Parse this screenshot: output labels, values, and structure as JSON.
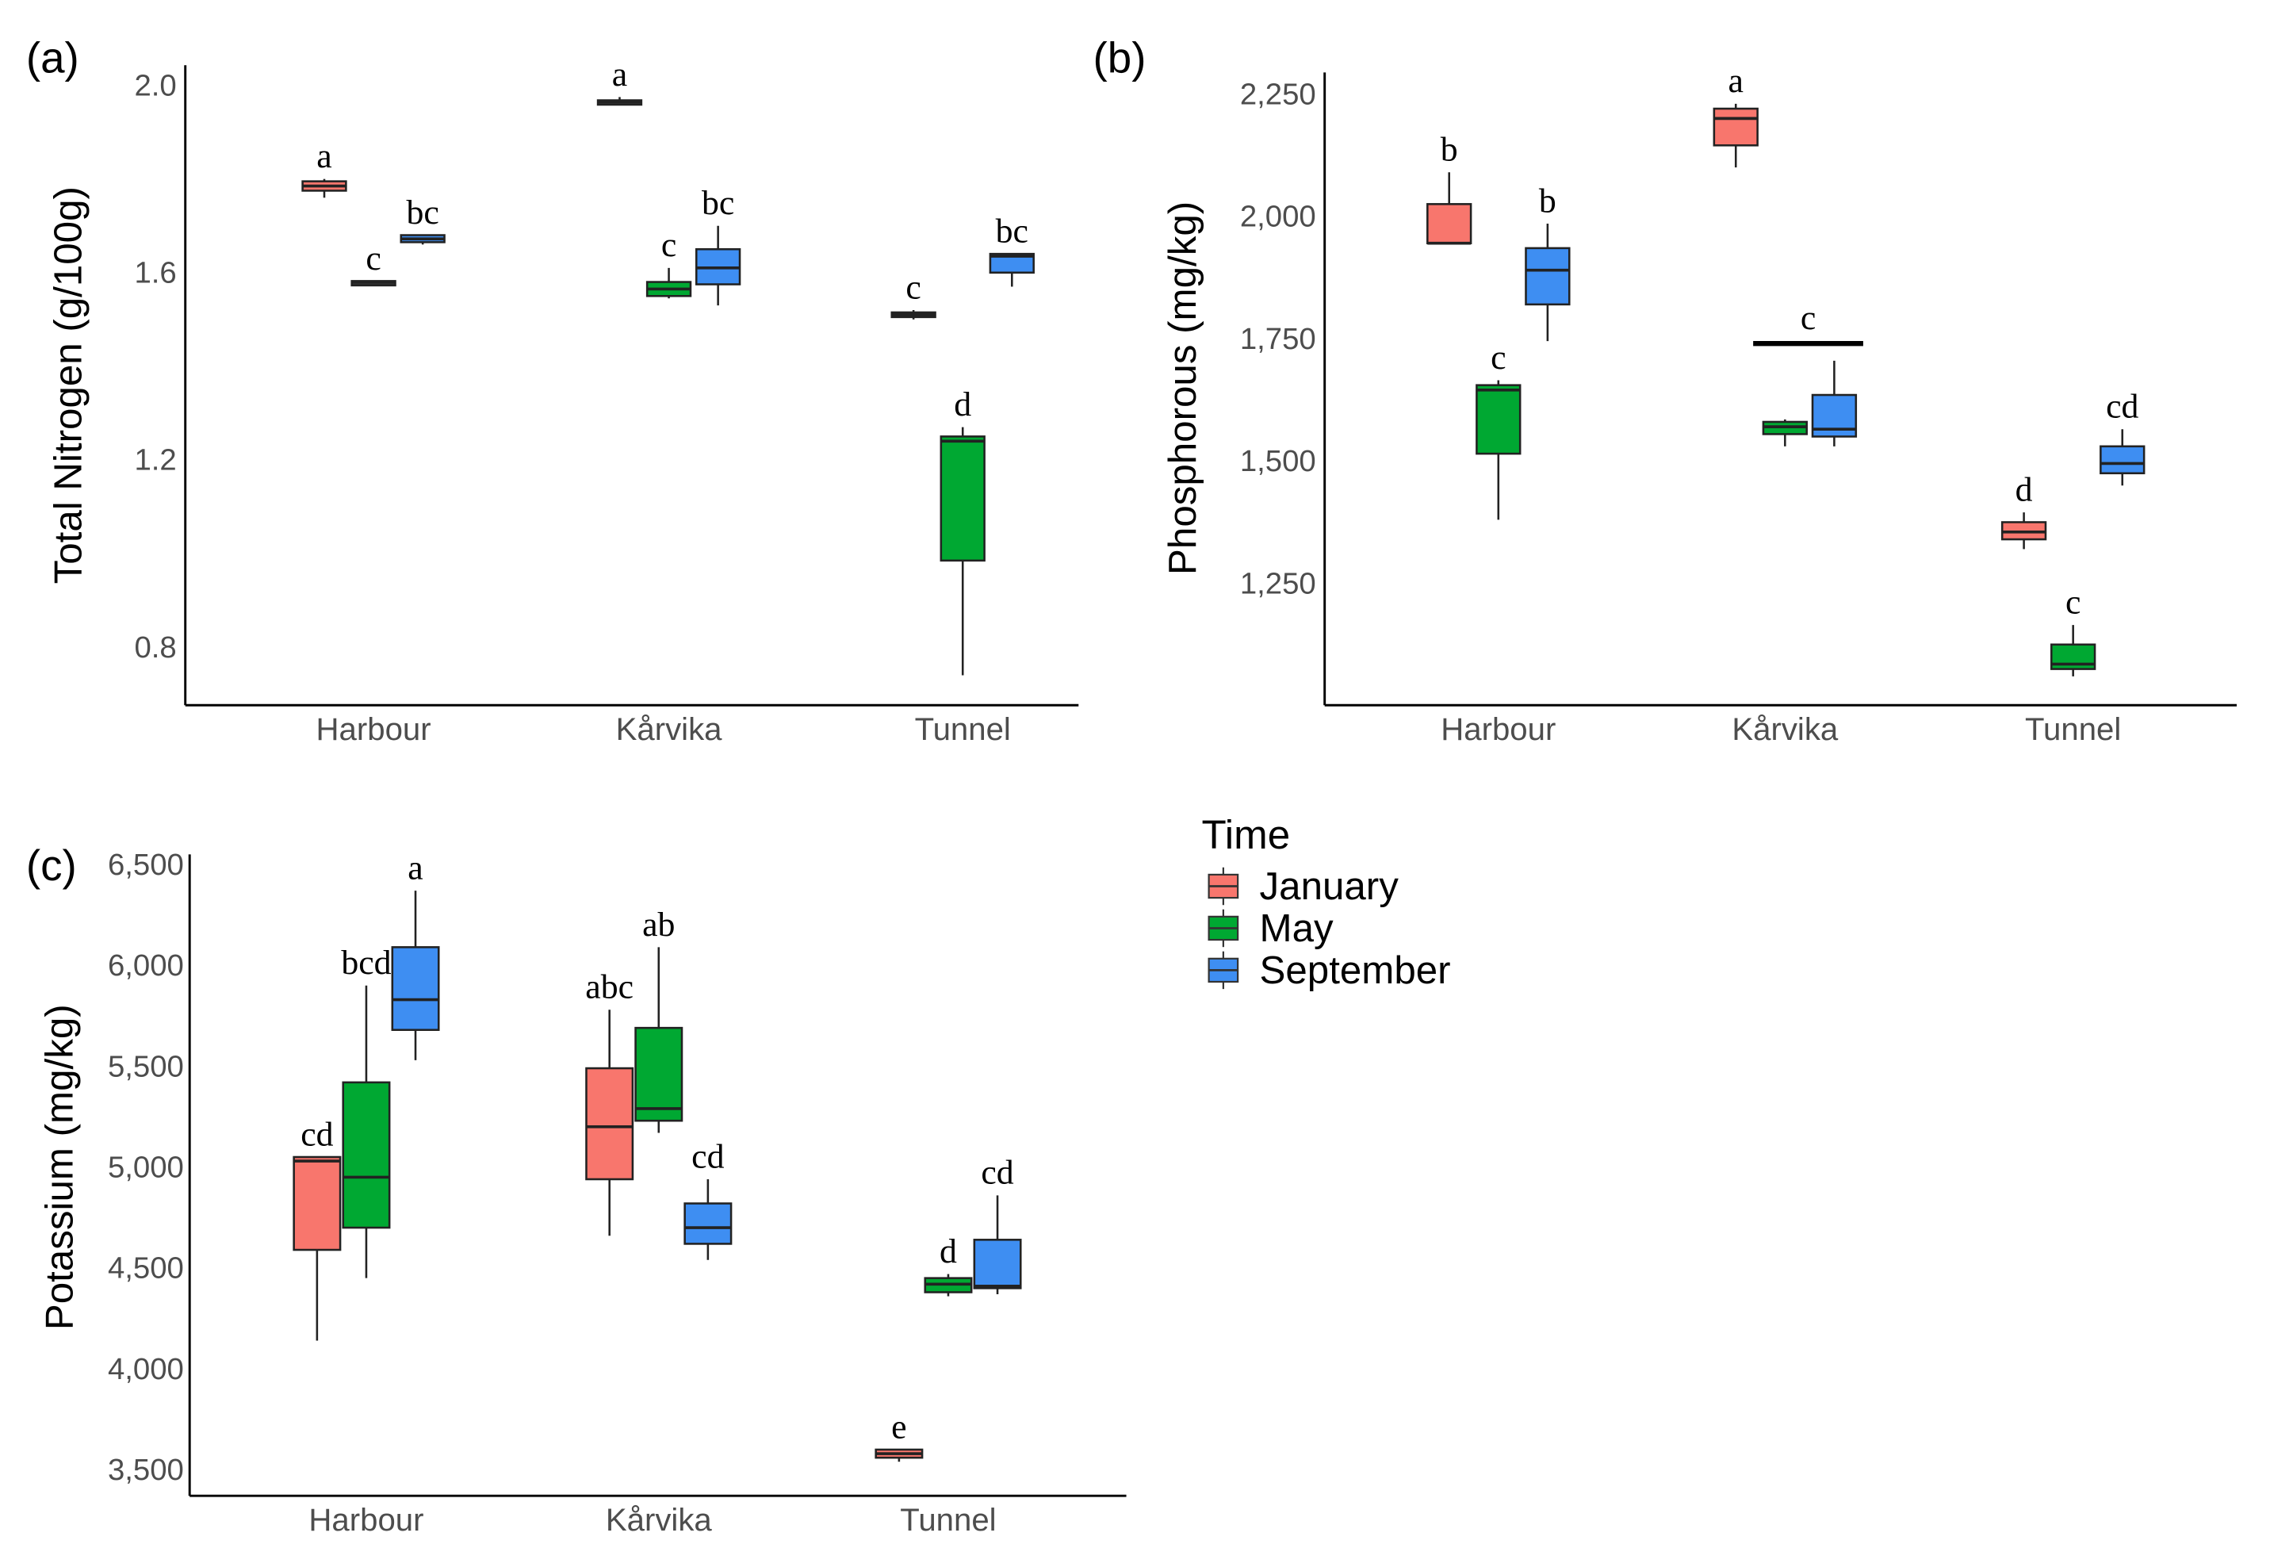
{
  "colors": {
    "January": "#F8766D",
    "May": "#00A832",
    "September": "#3E8EF2",
    "dark": "#333333"
  },
  "legend": {
    "title": "Time",
    "items": [
      "January",
      "May",
      "September"
    ]
  },
  "chart_data": [
    {
      "panel": "(a)",
      "type": "box",
      "ylabel": "Total Nitrogen (g/100g)",
      "categories": [
        "Harbour",
        "Kårvika",
        "Tunnel"
      ],
      "yticks": [
        {
          "v": 2.0,
          "t": "2.0"
        },
        {
          "v": 1.6,
          "t": "1.6"
        },
        {
          "v": 1.2,
          "t": "1.2"
        },
        {
          "v": 0.8,
          "t": "0.8"
        }
      ],
      "ylim": [
        0.676,
        2.043
      ],
      "boxes": [
        {
          "cat": 0,
          "series": "January",
          "q1": 1.775,
          "med": 1.785,
          "q3": 1.795,
          "lo": 1.76,
          "hi": 1.8,
          "letter": "a"
        },
        {
          "cat": 0,
          "series": "May",
          "q1": 1.578,
          "med": 1.58,
          "q3": 1.582,
          "lo": 1.575,
          "hi": 1.582,
          "letter": "c",
          "dark": true
        },
        {
          "cat": 0,
          "series": "September",
          "q1": 1.665,
          "med": 1.672,
          "q3": 1.68,
          "lo": 1.66,
          "hi": 1.68,
          "letter": "bc"
        },
        {
          "cat": 1,
          "series": "January",
          "q1": 1.962,
          "med": 1.965,
          "q3": 1.968,
          "lo": 1.962,
          "hi": 1.975,
          "letter": "a",
          "dark": true
        },
        {
          "cat": 1,
          "series": "May",
          "q1": 1.55,
          "med": 1.565,
          "q3": 1.58,
          "lo": 1.545,
          "hi": 1.61,
          "letter": "c"
        },
        {
          "cat": 1,
          "series": "September",
          "q1": 1.575,
          "med": 1.61,
          "q3": 1.65,
          "lo": 1.53,
          "hi": 1.7,
          "letter": "bc"
        },
        {
          "cat": 2,
          "series": "January",
          "q1": 1.505,
          "med": 1.51,
          "q3": 1.515,
          "lo": 1.5,
          "hi": 1.52,
          "letter": "c",
          "dark": true
        },
        {
          "cat": 2,
          "series": "May",
          "q1": 0.985,
          "med": 1.24,
          "q3": 1.25,
          "lo": 0.74,
          "hi": 1.27,
          "letter": "d"
        },
        {
          "cat": 2,
          "series": "September",
          "q1": 1.6,
          "med": 1.635,
          "q3": 1.64,
          "lo": 1.57,
          "hi": 1.64,
          "letter": "bc"
        }
      ]
    },
    {
      "panel": "(b)",
      "type": "box",
      "ylabel": "Phosphorous (mg/kg)",
      "categories": [
        "Harbour",
        "Kårvika",
        "Tunnel"
      ],
      "yticks": [
        {
          "v": 2250,
          "t": "2,250"
        },
        {
          "v": 2000,
          "t": "2,000"
        },
        {
          "v": 1750,
          "t": "1,750"
        },
        {
          "v": 1500,
          "t": "1,500"
        },
        {
          "v": 1250,
          "t": "1,250"
        }
      ],
      "ylim": [
        1001,
        2294
      ],
      "boxes": [
        {
          "cat": 0,
          "series": "January",
          "q1": 1945,
          "med": 1945,
          "q3": 2025,
          "lo": 1945,
          "hi": 2090,
          "letter": "b"
        },
        {
          "cat": 0,
          "series": "May",
          "q1": 1515,
          "med": 1645,
          "q3": 1655,
          "lo": 1380,
          "hi": 1665,
          "letter": "c"
        },
        {
          "cat": 0,
          "series": "September",
          "q1": 1820,
          "med": 1890,
          "q3": 1935,
          "lo": 1745,
          "hi": 1985,
          "letter": "b"
        },
        {
          "cat": 1,
          "series": "January",
          "q1": 2145,
          "med": 2200,
          "q3": 2220,
          "lo": 2100,
          "hi": 2230,
          "letter": "a"
        },
        {
          "cat": 1,
          "series": "May",
          "q1": 1555,
          "med": 1570,
          "q3": 1580,
          "lo": 1530,
          "hi": 1585,
          "letter": ""
        },
        {
          "cat": 1,
          "series": "September",
          "q1": 1550,
          "med": 1565,
          "q3": 1635,
          "lo": 1530,
          "hi": 1705,
          "letter": ""
        },
        {
          "cat": 2,
          "series": "January",
          "q1": 1340,
          "med": 1355,
          "q3": 1375,
          "lo": 1320,
          "hi": 1395,
          "letter": "d"
        },
        {
          "cat": 2,
          "series": "May",
          "q1": 1075,
          "med": 1085,
          "q3": 1125,
          "lo": 1060,
          "hi": 1165,
          "letter": "c"
        },
        {
          "cat": 2,
          "series": "September",
          "q1": 1475,
          "med": 1495,
          "q3": 1530,
          "lo": 1450,
          "hi": 1565,
          "letter": "cd"
        }
      ],
      "group_annotation": {
        "cat": 1,
        "value": 1740,
        "letter": "c"
      }
    },
    {
      "panel": "(c)",
      "type": "box",
      "ylabel": "Potassium (mg/kg)",
      "categories": [
        "Harbour",
        "Kårvika",
        "Tunnel"
      ],
      "yticks": [
        {
          "v": 6500,
          "t": "6,500"
        },
        {
          "v": 6000,
          "t": "6,000"
        },
        {
          "v": 5500,
          "t": "5,500"
        },
        {
          "v": 5000,
          "t": "5,000"
        },
        {
          "v": 4500,
          "t": "4,500"
        },
        {
          "v": 4000,
          "t": "4,000"
        },
        {
          "v": 3500,
          "t": "3,500"
        }
      ],
      "ylim": [
        3371,
        6550
      ],
      "boxes": [
        {
          "cat": 0,
          "series": "January",
          "q1": 4590,
          "med": 5030,
          "q3": 5050,
          "lo": 4140,
          "hi": 5050,
          "letter": "cd"
        },
        {
          "cat": 0,
          "series": "May",
          "q1": 4700,
          "med": 4950,
          "q3": 5420,
          "lo": 4450,
          "hi": 5900,
          "letter": "bcd"
        },
        {
          "cat": 0,
          "series": "September",
          "q1": 5680,
          "med": 5830,
          "q3": 6090,
          "lo": 5530,
          "hi": 6370,
          "letter": "a"
        },
        {
          "cat": 1,
          "series": "January",
          "q1": 4940,
          "med": 5200,
          "q3": 5490,
          "lo": 4660,
          "hi": 5780,
          "letter": "abc"
        },
        {
          "cat": 1,
          "series": "May",
          "q1": 5230,
          "med": 5290,
          "q3": 5690,
          "lo": 5170,
          "hi": 6090,
          "letter": "ab"
        },
        {
          "cat": 1,
          "series": "September",
          "q1": 4620,
          "med": 4700,
          "q3": 4820,
          "lo": 4540,
          "hi": 4940,
          "letter": "cd"
        },
        {
          "cat": 2,
          "series": "January",
          "q1": 3560,
          "med": 3580,
          "q3": 3600,
          "lo": 3540,
          "hi": 3600,
          "letter": "e"
        },
        {
          "cat": 2,
          "series": "May",
          "q1": 4380,
          "med": 4420,
          "q3": 4450,
          "lo": 4360,
          "hi": 4470,
          "letter": "d"
        },
        {
          "cat": 2,
          "series": "September",
          "q1": 4400,
          "med": 4410,
          "q3": 4640,
          "lo": 4370,
          "hi": 4860,
          "letter": "cd"
        }
      ]
    }
  ]
}
